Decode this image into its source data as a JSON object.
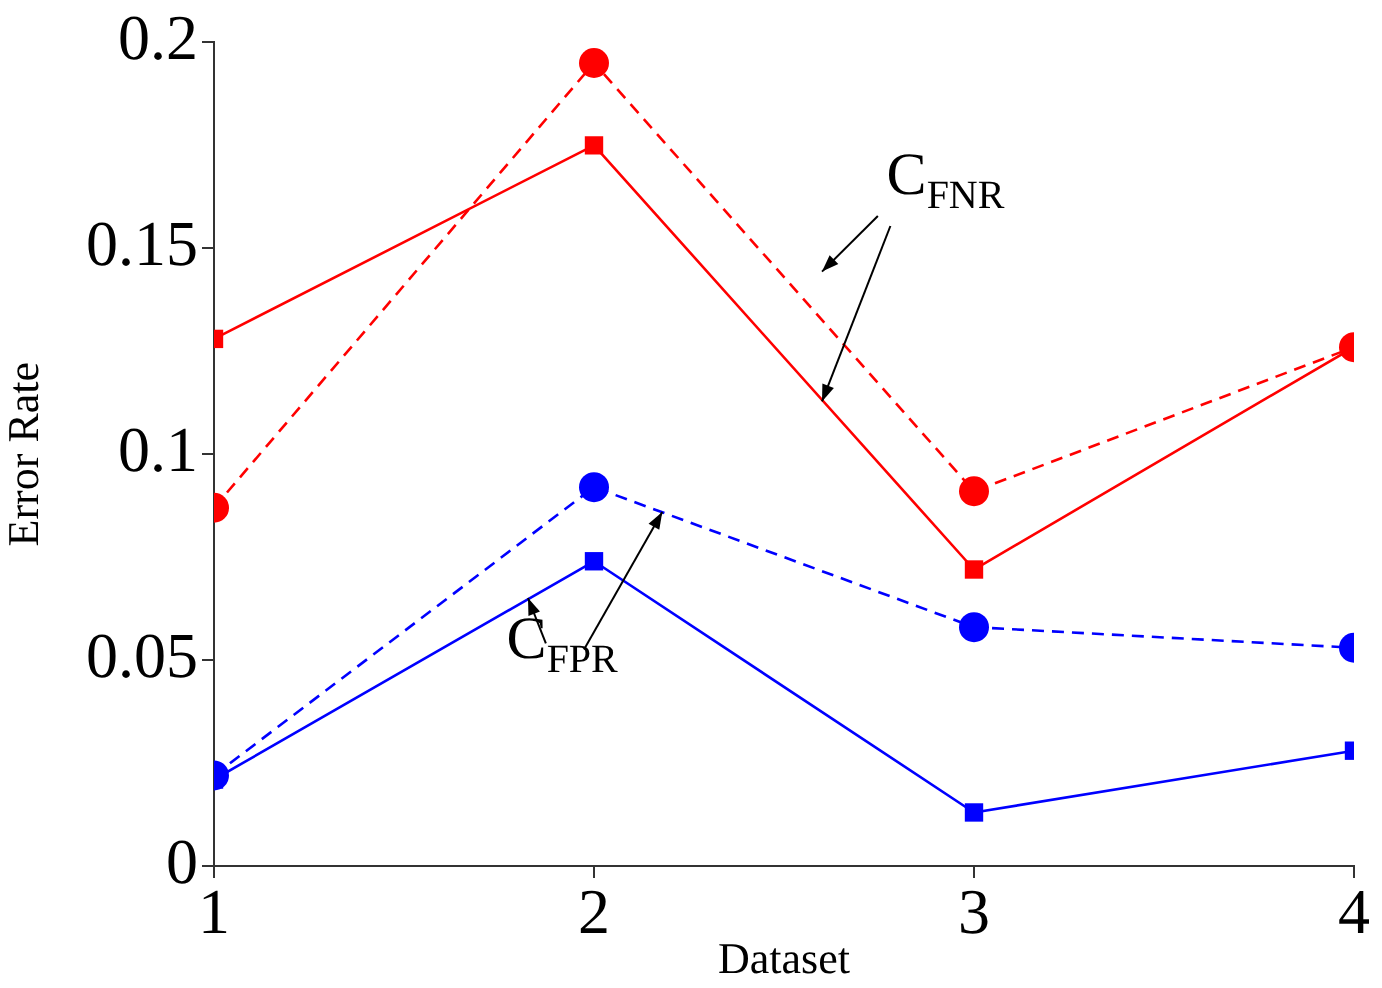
{
  "chart_data": {
    "type": "line",
    "xlabel": "Dataset",
    "ylabel": "Error Rate",
    "x": [
      1,
      2,
      3,
      4
    ],
    "xlim": [
      1,
      4
    ],
    "xticks": [
      1,
      2,
      3,
      4
    ],
    "ylim": [
      0,
      0.2
    ],
    "yticks": [
      0,
      0.05,
      0.1,
      0.15,
      0.2
    ],
    "grid": false,
    "legend": false,
    "annotations": [
      {
        "text": "C$_{FNR}$",
        "x": 2.6,
        "y": 0.113
      },
      {
        "text": "C$_{FPR}$",
        "x": 2.18,
        "y": 0.086
      }
    ],
    "series": [
      {
        "color": "#ff0000",
        "line_style": "solid",
        "marker": "square",
        "values": [
          0.128,
          0.175,
          0.072,
          0.126
        ]
      },
      {
        "color": "#ff0000",
        "line_style": "dashed",
        "marker": "circle",
        "values": [
          0.087,
          0.195,
          0.091,
          0.126
        ]
      },
      {
        "color": "#0000ff",
        "line_style": "dashed",
        "marker": "circle",
        "values": [
          0.022,
          0.092,
          0.058,
          0.053
        ]
      },
      {
        "color": "#0000ff",
        "line_style": "solid",
        "marker": "square",
        "values": [
          0.021,
          0.074,
          0.013,
          0.028
        ]
      }
    ]
  }
}
